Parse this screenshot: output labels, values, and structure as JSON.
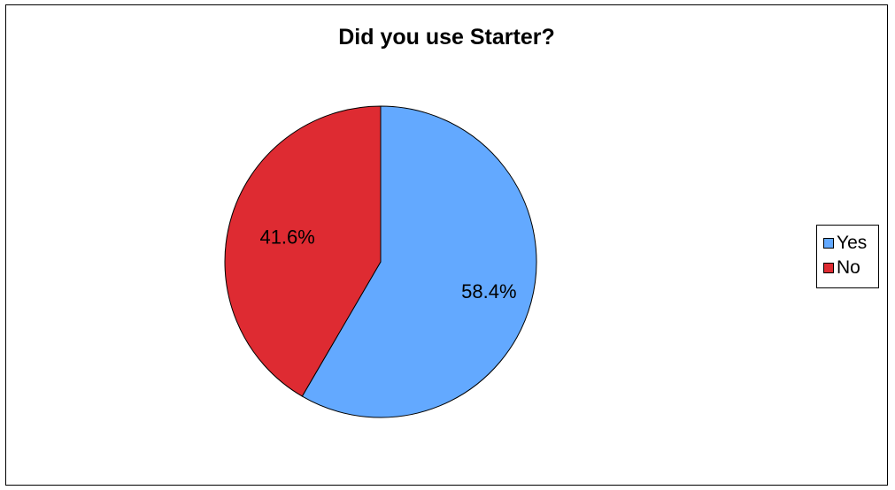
{
  "chart_data": {
    "type": "pie",
    "title": "Did you use Starter?",
    "categories": [
      "Yes",
      "No"
    ],
    "values": [
      58.4,
      41.6
    ],
    "labels": [
      "58.4%",
      "41.6%"
    ],
    "colors": [
      "#63a9ff",
      "#de2b32"
    ],
    "legend": "right"
  }
}
